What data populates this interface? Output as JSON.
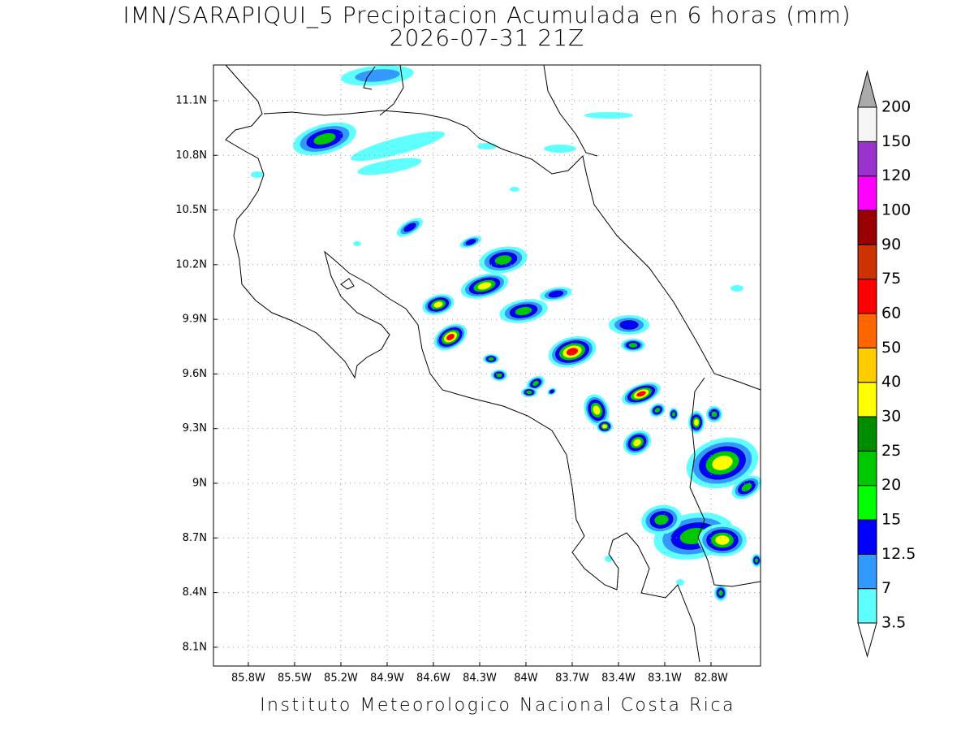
{
  "map": {
    "title": "IMN/SARAPIQUI_5 Precipitacion Acumulada en 6 horas (mm)",
    "subtitle": "2026-07-31 21Z",
    "footer": "Instituto Meteorologico Nacional Costa Rica",
    "xlim": [
      -86.026,
      -82.479
    ],
    "ylim": [
      7.997,
      11.296
    ],
    "xticks": [
      {
        "value": -85.8,
        "label": "85.8W"
      },
      {
        "value": -85.5,
        "label": "85.5W"
      },
      {
        "value": -85.2,
        "label": "85.2W"
      },
      {
        "value": -84.9,
        "label": "84.9W"
      },
      {
        "value": -84.6,
        "label": "84.6W"
      },
      {
        "value": -84.3,
        "label": "84.3W"
      },
      {
        "value": -84,
        "label": "84W"
      },
      {
        "value": -83.7,
        "label": "83.7W"
      },
      {
        "value": -83.4,
        "label": "83.4W"
      },
      {
        "value": -83.1,
        "label": "83.1W"
      },
      {
        "value": -82.8,
        "label": "82.8W"
      }
    ],
    "yticks": [
      {
        "value": 8.1,
        "label": "8.1N"
      },
      {
        "value": 8.4,
        "label": "8.4N"
      },
      {
        "value": 8.7,
        "label": "8.7N"
      },
      {
        "value": 9,
        "label": "9N"
      },
      {
        "value": 9.3,
        "label": "9.3N"
      },
      {
        "value": 9.6,
        "label": "9.6N"
      },
      {
        "value": 9.9,
        "label": "9.9N"
      },
      {
        "value": 10.2,
        "label": "10.2N"
      },
      {
        "value": 10.5,
        "label": "10.5N"
      },
      {
        "value": 10.8,
        "label": "10.8N"
      },
      {
        "value": 11.1,
        "label": "11.1N"
      }
    ],
    "grid": true,
    "colorbar": {
      "levels": [
        3.5,
        7,
        12.5,
        15,
        20,
        25,
        30,
        40,
        50,
        60,
        75,
        90,
        100,
        120,
        150,
        200
      ],
      "colors": [
        "#5fffff",
        "#3399ff",
        "#0000ff",
        "#00ff00",
        "#00c800",
        "#008c00",
        "#ffff00",
        "#ffcc00",
        "#ff6600",
        "#ff0000",
        "#cc3300",
        "#990000",
        "#ff00ff",
        "#9933cc",
        "#f5f5f5"
      ],
      "over_color": "#aaaaaa",
      "under_color": "#ffffff"
    }
  }
}
